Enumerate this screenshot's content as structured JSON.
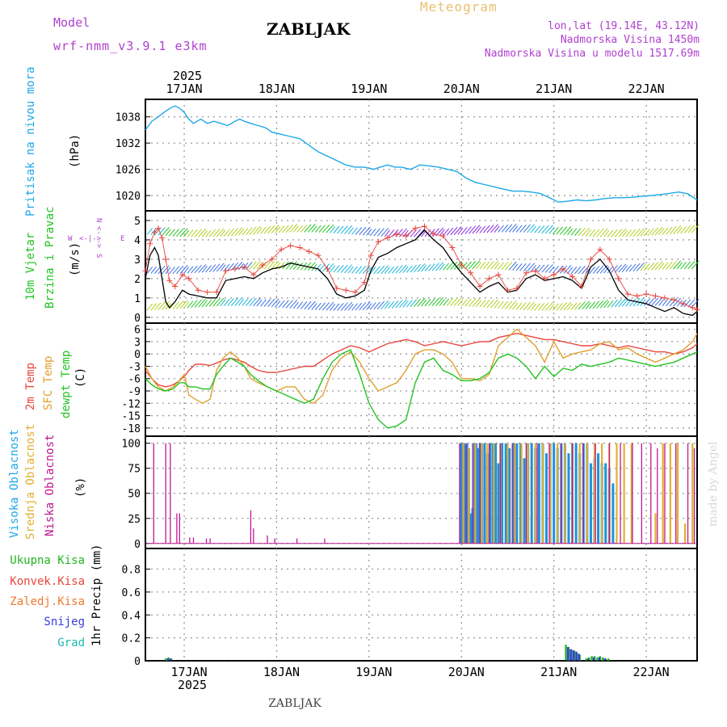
{
  "header": {
    "model_label": "Model",
    "model_name": "wrf-nmm_v3.9.1 e3km",
    "title": "ZABLJAK",
    "meteogram_label": "Meteogram",
    "coords": "lon,lat (19.14E, 43.12N)",
    "altitude": "Nadmorska Visina 1450m",
    "model_altitude": "Nadmorska Visina u modelu 1517.69m",
    "footer_title": "ZABLJAK",
    "credit": "made by Angel"
  },
  "time_axis": {
    "year": "2025",
    "days": [
      "17JAN",
      "18JAN",
      "19JAN",
      "20JAN",
      "21JAN",
      "22JAN"
    ],
    "day_positions": [
      1,
      2,
      3,
      4,
      5,
      6
    ],
    "range": [
      0.58,
      6.55
    ]
  },
  "colors": {
    "pressure": "#1ea8e8",
    "temp2m": "#e8453c",
    "sfc": "#e0a030",
    "dewpt": "#22c422",
    "low_cloud": "#c01890",
    "mid_cloud": "#e0b030",
    "high_cloud": "#1e90e0",
    "wind_text": "#22c422",
    "wind_dir": "#b040d0",
    "purple_text": "#b040d0"
  },
  "panels": {
    "pressure": {
      "label_colored": "Pritisak na nivou mora",
      "unit": "(hPa)"
    },
    "wind": {
      "label_colored_1": "10m Vjetar",
      "label_colored_2": "Brzina i Pravac",
      "unit": "(m/s)",
      "dir_n": "N",
      "dir_w": "W",
      "dir_e": "E",
      "dir_s": "S",
      "dir_arrow_v": "<- ->",
      "dir_arrow_h": "<-|->"
    },
    "temp": {
      "label_a": "2m Temp",
      "label_b": "SFC Temp",
      "label_c": "dewpt Temp",
      "unit": "(C)"
    },
    "cloud": {
      "label_a": "Visoka Oblacnost",
      "label_b": "Srednja Oblacnost",
      "label_c": "Niska Oblacnost",
      "unit": "(%)"
    },
    "precip": {
      "legend": [
        {
          "label": "Ukupna Kisa",
          "color": "#22b422"
        },
        {
          "label": "Konvek.Kisa",
          "color": "#e8453c"
        },
        {
          "label": "Zaledj.Kisa",
          "color": "#f07830"
        },
        {
          "label": "Snijeg",
          "color": "#3a3ae0"
        },
        {
          "label": "Grad",
          "color": "#20b8b0"
        }
      ],
      "unit": "1hr Precip (mm)"
    }
  },
  "chart_data": [
    {
      "type": "line",
      "name": "pressure",
      "title": "Pritisak na nivou mora",
      "ylabel": "(hPa)",
      "ylim": [
        1016.5,
        1042
      ],
      "yticks": [
        1020,
        1026,
        1032,
        1038
      ],
      "x": [
        0.58,
        0.65,
        0.72,
        0.78,
        0.85,
        0.9,
        0.95,
        1.0,
        1.05,
        1.1,
        1.18,
        1.25,
        1.32,
        1.4,
        1.47,
        1.55,
        1.6,
        1.65,
        1.72,
        1.8,
        1.88,
        1.95,
        2.05,
        2.15,
        2.25,
        2.35,
        2.45,
        2.55,
        2.65,
        2.75,
        2.85,
        2.95,
        3.05,
        3.12,
        3.2,
        3.28,
        3.35,
        3.45,
        3.55,
        3.65,
        3.75,
        3.85,
        3.95,
        4.05,
        4.15,
        4.25,
        4.35,
        4.45,
        4.55,
        4.65,
        4.75,
        4.85,
        4.95,
        5.05,
        5.15,
        5.25,
        5.35,
        5.45,
        5.55,
        5.65,
        5.75,
        5.85,
        5.95,
        6.05,
        6.15,
        6.25,
        6.35,
        6.45,
        6.55
      ],
      "values": [
        1035,
        1037,
        1038,
        1039,
        1040,
        1040.5,
        1040,
        1039,
        1037.5,
        1036.5,
        1037.5,
        1036.5,
        1037,
        1036.5,
        1036,
        1037,
        1037.5,
        1037,
        1036.5,
        1036,
        1035.5,
        1034.5,
        1034,
        1033.5,
        1033,
        1031.5,
        1030,
        1029,
        1028,
        1027,
        1026.5,
        1026.5,
        1026,
        1026.5,
        1027,
        1026.5,
        1026.5,
        1026,
        1027,
        1026.8,
        1026.5,
        1026,
        1025.5,
        1024,
        1023,
        1022.5,
        1022,
        1021.5,
        1021,
        1021,
        1020.8,
        1020.5,
        1019.5,
        1018.5,
        1018.7,
        1019,
        1018.8,
        1019,
        1019.3,
        1019.5,
        1019.5,
        1019.6,
        1019.8,
        1020,
        1020.2,
        1020.5,
        1020.8,
        1020.4,
        1019
      ]
    },
    {
      "type": "line",
      "name": "wind",
      "title": "10m Vjetar Brzina i Pravac",
      "ylabel": "(m/s)",
      "ylim": [
        -0.3,
        5.5
      ],
      "yticks": [
        0,
        1,
        2,
        3,
        4,
        5
      ],
      "x": [
        0.58,
        0.63,
        0.68,
        0.72,
        0.76,
        0.8,
        0.84,
        0.9,
        0.98,
        1.05,
        1.15,
        1.25,
        1.35,
        1.45,
        1.55,
        1.65,
        1.75,
        1.85,
        1.95,
        2.05,
        2.15,
        2.25,
        2.35,
        2.45,
        2.55,
        2.65,
        2.75,
        2.85,
        2.95,
        3.02,
        3.1,
        3.2,
        3.3,
        3.4,
        3.5,
        3.6,
        3.7,
        3.8,
        3.9,
        4.0,
        4.1,
        4.2,
        4.3,
        4.4,
        4.5,
        4.6,
        4.7,
        4.8,
        4.9,
        5.0,
        5.1,
        5.2,
        5.3,
        5.4,
        5.5,
        5.6,
        5.7,
        5.8,
        5.9,
        6.0,
        6.1,
        6.2,
        6.3,
        6.4,
        6.5,
        6.55
      ],
      "series": [
        {
          "name": "Brzina (gust)",
          "values": [
            2.4,
            3.8,
            4.4,
            4.6,
            4.1,
            3.0,
            1.9,
            1.6,
            2.2,
            2.0,
            1.4,
            1.3,
            1.3,
            2.4,
            2.5,
            2.6,
            2.2,
            2.7,
            3.0,
            3.5,
            3.7,
            3.6,
            3.4,
            3.2,
            2.5,
            1.5,
            1.4,
            1.3,
            1.8,
            3.2,
            3.9,
            4.1,
            4.3,
            4.2,
            4.6,
            4.7,
            4.3,
            4.2,
            3.6,
            2.7,
            2.3,
            1.6,
            2.0,
            2.2,
            1.4,
            1.5,
            2.3,
            2.4,
            2.0,
            2.2,
            2.5,
            2.1,
            1.6,
            3.0,
            3.5,
            3.0,
            2.0,
            1.2,
            1.1,
            1.2,
            1.1,
            1.0,
            0.9,
            0.7,
            0.5,
            0.4
          ]
        },
        {
          "name": "Brzina",
          "values": [
            2.0,
            3.2,
            3.6,
            3.2,
            2.0,
            0.8,
            0.5,
            0.8,
            1.4,
            1.2,
            1.1,
            1.0,
            1.0,
            1.9,
            2.0,
            2.1,
            2.0,
            2.3,
            2.5,
            2.6,
            2.8,
            2.7,
            2.6,
            2.5,
            2.0,
            1.2,
            1.0,
            1.1,
            1.4,
            2.4,
            3.1,
            3.3,
            3.6,
            3.8,
            4.0,
            4.5,
            4.0,
            3.6,
            2.9,
            2.3,
            1.8,
            1.3,
            1.6,
            1.8,
            1.3,
            1.4,
            2.0,
            2.2,
            1.9,
            2.0,
            2.1,
            1.9,
            1.5,
            2.6,
            3.0,
            2.4,
            1.4,
            0.9,
            0.8,
            0.7,
            0.5,
            0.3,
            0.5,
            0.2,
            0.1,
            0.3
          ]
        }
      ]
    },
    {
      "type": "line",
      "name": "temperature",
      "title": "2m Temp / SFC Temp / dewpt Temp",
      "ylabel": "(C)",
      "ylim": [
        -20,
        7.5
      ],
      "yticks": [
        -18,
        -15,
        -12,
        -9,
        -6,
        -3,
        0,
        3,
        6
      ],
      "x": [
        0.58,
        0.65,
        0.72,
        0.8,
        0.88,
        0.95,
        1.0,
        1.05,
        1.12,
        1.2,
        1.28,
        1.35,
        1.42,
        1.5,
        1.58,
        1.65,
        1.72,
        1.8,
        1.9,
        2.0,
        2.1,
        2.2,
        2.3,
        2.4,
        2.5,
        2.6,
        2.7,
        2.8,
        2.9,
        3.0,
        3.1,
        3.2,
        3.3,
        3.4,
        3.5,
        3.6,
        3.7,
        3.8,
        3.9,
        4.0,
        4.1,
        4.2,
        4.3,
        4.4,
        4.5,
        4.6,
        4.7,
        4.8,
        4.9,
        5.0,
        5.1,
        5.2,
        5.3,
        5.4,
        5.5,
        5.6,
        5.7,
        5.8,
        5.9,
        6.0,
        6.1,
        6.2,
        6.3,
        6.4,
        6.5,
        6.55
      ],
      "series": [
        {
          "name": "2m Temp",
          "values": [
            -4,
            -6,
            -7.5,
            -8,
            -7.5,
            -6.5,
            -5.5,
            -4,
            -2.5,
            -2.5,
            -2.8,
            -2.2,
            -1.5,
            -1,
            -1.5,
            -2,
            -3,
            -4,
            -4.5,
            -4.5,
            -4,
            -3.5,
            -3,
            -3,
            -1.5,
            0,
            1,
            2,
            1.5,
            0.5,
            1.5,
            2.5,
            3,
            3.5,
            3,
            2,
            2.5,
            3,
            2.5,
            2,
            2.5,
            3,
            3,
            4,
            4.5,
            5,
            4.5,
            4,
            3.5,
            3.5,
            3,
            2.5,
            2,
            2,
            2.5,
            2,
            1.5,
            2,
            1.5,
            1,
            0.5,
            0.5,
            0,
            0.5,
            1.5,
            2.5
          ]
        },
        {
          "name": "SFC Temp",
          "values": [
            -3,
            -6,
            -8,
            -9,
            -8,
            -6.5,
            -5,
            -10,
            -11,
            -12,
            -11,
            -4,
            -1,
            0.5,
            -1,
            -3,
            -6,
            -7,
            -8,
            -9,
            -8,
            -8,
            -11,
            -12,
            -10,
            -4,
            -1,
            0.5,
            -2,
            -6,
            -9,
            -8,
            -7,
            -4,
            0,
            1,
            1,
            0,
            -2,
            -6,
            -6,
            -6.5,
            -5,
            2,
            4,
            6,
            4,
            2,
            -2,
            3,
            -1,
            0,
            0.5,
            1,
            2.5,
            3,
            1,
            1.5,
            0,
            -1,
            -2,
            -1,
            0,
            1,
            3,
            5
          ]
        },
        {
          "name": "dewpt Temp",
          "values": [
            -6,
            -7.5,
            -8.5,
            -9,
            -8.5,
            -7,
            -7,
            -8,
            -8,
            -8.5,
            -8.5,
            -5,
            -3,
            -1,
            -2,
            -3,
            -5,
            -6.5,
            -8,
            -9,
            -10,
            -11,
            -12,
            -11,
            -6,
            -2,
            0,
            1,
            -5,
            -12,
            -16,
            -18,
            -17.5,
            -16,
            -7,
            -2,
            -1,
            -4,
            -5,
            -6.5,
            -6.5,
            -6,
            -4.5,
            -1,
            0,
            -1,
            -3,
            -6,
            -3,
            -5.5,
            -3.5,
            -4,
            -2.5,
            -3,
            -2.5,
            -2,
            -1,
            -1.5,
            -2,
            -2.5,
            -3,
            -2.5,
            -2,
            -1,
            0,
            0.5
          ]
        }
      ]
    },
    {
      "type": "bar",
      "name": "cloud_cover",
      "title": "Visoka / Srednja / Niska Oblacnost",
      "ylabel": "(%)",
      "ylim": [
        -5,
        107
      ],
      "yticks": [
        0,
        25,
        50,
        75,
        100
      ],
      "series": [
        {
          "name": "Niska Oblacnost",
          "x": [
            0.67,
            0.8,
            0.85,
            0.92,
            0.95,
            1.06,
            1.1,
            1.24,
            1.28,
            1.72,
            1.75,
            1.9,
            1.98,
            2.22,
            2.52,
            3.98,
            4.05,
            4.12,
            4.2,
            4.3,
            4.42,
            4.55,
            4.7,
            4.82,
            4.95,
            5.08,
            5.2,
            5.32,
            5.45,
            5.6,
            5.72,
            5.85,
            5.95,
            6.05,
            6.12,
            6.2,
            6.32,
            6.45,
            6.52
          ],
          "values": [
            100,
            100,
            100,
            30,
            30,
            6,
            6,
            5,
            5,
            33,
            15,
            8,
            5,
            5,
            5,
            100,
            100,
            100,
            100,
            100,
            100,
            100,
            100,
            100,
            100,
            100,
            100,
            100,
            100,
            100,
            100,
            100,
            100,
            100,
            95,
            100,
            100,
            100,
            95
          ]
        },
        {
          "name": "Srednja Oblacnost",
          "x": [
            4.02,
            4.08,
            4.15,
            4.22,
            4.28,
            4.35,
            4.42,
            4.5,
            4.58,
            4.65,
            4.72,
            4.8,
            4.88,
            4.96,
            5.04,
            5.12,
            5.2,
            5.28,
            5.36,
            5.44,
            5.52,
            5.6,
            5.68,
            5.76,
            5.84,
            6.1,
            6.18,
            6.26,
            6.34,
            6.42,
            6.5
          ],
          "values": [
            100,
            95,
            100,
            100,
            100,
            100,
            100,
            100,
            100,
            100,
            100,
            100,
            100,
            100,
            100,
            100,
            100,
            100,
            100,
            100,
            100,
            100,
            100,
            100,
            100,
            30,
            100,
            100,
            100,
            20,
            100
          ]
        },
        {
          "name": "Visoka Oblacnost",
          "x": [
            3.99,
            4.0,
            4.01,
            4.02,
            4.03,
            4.04,
            4.06,
            4.08,
            4.1,
            4.12,
            4.14,
            4.16,
            4.18,
            4.2,
            4.22,
            4.25,
            4.28,
            4.31,
            4.34,
            4.37,
            4.4,
            4.44,
            4.48,
            4.52,
            4.56,
            4.6,
            4.64,
            4.68,
            4.72,
            4.76,
            4.8,
            4.84,
            4.88,
            4.92,
            4.96,
            5.0,
            5.04,
            5.08,
            5.12,
            5.16,
            5.2,
            5.24,
            5.28,
            5.32,
            5.36,
            5.4,
            5.44,
            5.48,
            5.52,
            5.56,
            5.6,
            5.64
          ],
          "values": [
            100,
            95,
            100,
            90,
            100,
            98,
            100,
            95,
            30,
            35,
            100,
            100,
            95,
            100,
            100,
            100,
            90,
            100,
            100,
            100,
            80,
            100,
            100,
            95,
            100,
            100,
            100,
            85,
            100,
            100,
            95,
            100,
            100,
            90,
            100,
            100,
            95,
            100,
            100,
            90,
            100,
            100,
            90,
            100,
            100,
            80,
            85,
            90,
            80,
            80,
            75,
            60
          ]
        }
      ]
    },
    {
      "type": "bar",
      "name": "precipitation",
      "title": "1hr Precip",
      "ylabel": "1hr Precip (mm)",
      "ylim": [
        0,
        0.98
      ],
      "yticks": [
        0,
        0.2,
        0.4,
        0.6,
        0.8
      ],
      "series": [
        {
          "name": "Ukupna Kisa",
          "x": [
            0.8,
            0.83,
            0.86,
            5.13,
            5.16,
            5.19,
            5.22,
            5.25,
            5.28,
            5.35,
            5.38,
            5.41,
            5.44,
            5.47,
            5.5,
            5.53,
            5.56,
            5.59
          ],
          "values": [
            0.02,
            0.03,
            0.02,
            0.14,
            0.12,
            0.1,
            0.09,
            0.07,
            0.05,
            0.02,
            0.03,
            0.04,
            0.04,
            0.03,
            0.04,
            0.03,
            0.02,
            0.02
          ]
        },
        {
          "name": "Snijeg",
          "x": [
            0.81,
            0.84,
            5.14,
            5.17,
            5.2,
            5.23,
            5.26,
            5.36,
            5.42,
            5.48,
            5.54
          ],
          "values": [
            0.02,
            0.02,
            0.12,
            0.1,
            0.09,
            0.08,
            0.06,
            0.02,
            0.03,
            0.03,
            0.02
          ]
        }
      ]
    }
  ]
}
